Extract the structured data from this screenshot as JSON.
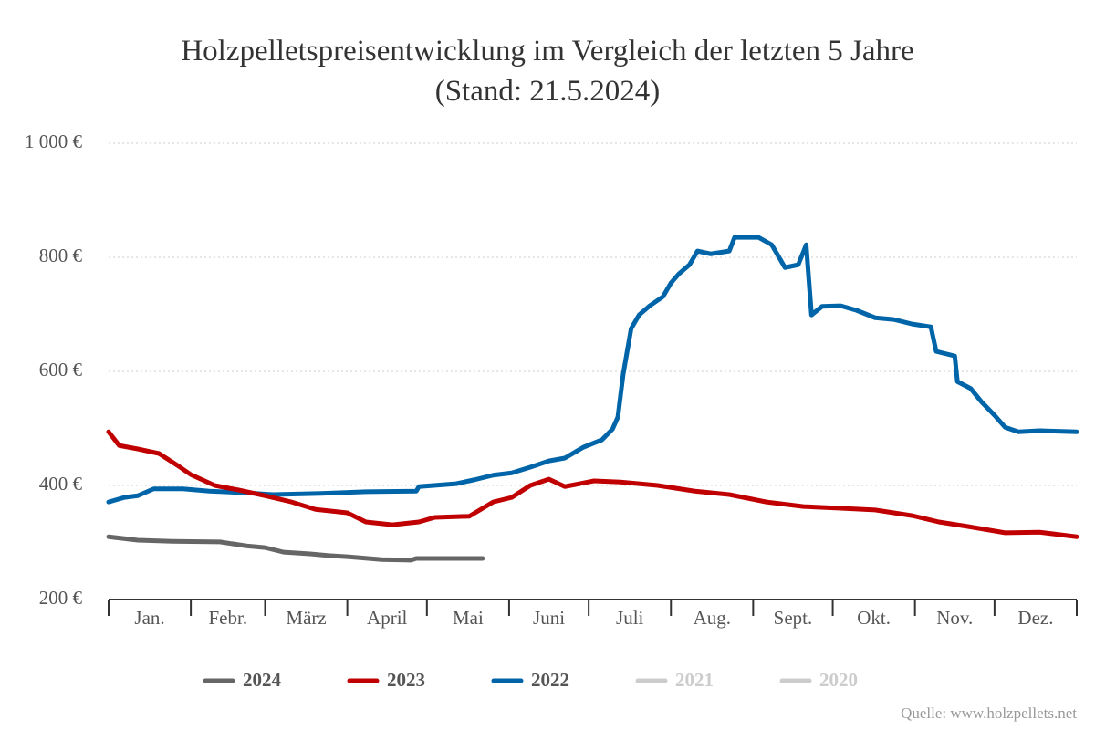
{
  "chart_data": {
    "type": "line",
    "title": "Holzpelletspreisentwicklung im Vergleich der letzten 5 Jahre (Stand: 21.5.2024)",
    "source": "Quelle: www.holzpellets.net",
    "categories": [
      "Jan.",
      "Febr.",
      "März",
      "April",
      "Mai",
      "Juni",
      "Juli",
      "Aug.",
      "Sept.",
      "Okt.",
      "Nov.",
      "Dez."
    ],
    "xlim": [
      1,
      366
    ],
    "xticks": [
      1,
      32,
      60,
      91,
      121,
      152,
      182,
      213,
      244,
      274,
      305,
      335,
      366
    ],
    "ylim": [
      200,
      1000
    ],
    "yticks": [
      {
        "value": 200,
        "label": "200 €"
      },
      {
        "value": 400,
        "label": "400 €"
      },
      {
        "value": 600,
        "label": "600 €"
      },
      {
        "value": 800,
        "label": "800 €"
      },
      {
        "value": 1000,
        "label": "1 000 €"
      }
    ],
    "grid": true,
    "legend": "bottom",
    "series": [
      {
        "name": "2024",
        "color": "#666666",
        "visible": true,
        "x": [
          1,
          12,
          25,
          43,
          53,
          60,
          67,
          77,
          84,
          91,
          104,
          115,
          117,
          132,
          142
        ],
        "values": [
          310,
          304,
          302,
          301,
          294,
          291,
          283,
          280,
          277,
          275,
          270,
          269,
          272,
          272,
          272
        ]
      },
      {
        "name": "2023",
        "color": "#c00000",
        "visible": true,
        "x": [
          1,
          5,
          12,
          20,
          27,
          32,
          41,
          50,
          60,
          70,
          79,
          91,
          98,
          108,
          118,
          124,
          137,
          146,
          153,
          160,
          167,
          173,
          184,
          194,
          208,
          222,
          235,
          249,
          263,
          277,
          290,
          304,
          314,
          325,
          339,
          352,
          366
        ],
        "values": [
          494,
          470,
          464,
          456,
          435,
          419,
          400,
          392,
          382,
          371,
          358,
          352,
          336,
          331,
          336,
          344,
          346,
          371,
          379,
          400,
          411,
          398,
          408,
          406,
          400,
          390,
          384,
          371,
          363,
          360,
          357,
          347,
          336,
          328,
          317,
          318,
          310
        ]
      },
      {
        "name": "2022",
        "color": "#0064a8",
        "visible": true,
        "x": [
          1,
          7,
          12,
          18,
          29,
          39,
          53,
          63,
          81,
          98,
          117,
          118,
          132,
          139,
          146,
          153,
          160,
          167,
          173,
          180,
          187,
          191,
          193,
          195,
          198,
          201,
          205,
          210,
          213,
          216,
          220,
          223,
          228,
          235,
          237,
          246,
          251,
          256,
          261,
          264,
          266,
          270,
          277,
          283,
          290,
          297,
          304,
          311,
          313,
          320,
          321,
          326,
          330,
          335,
          339,
          344,
          352,
          366
        ],
        "values": [
          371,
          379,
          382,
          394,
          394,
          390,
          387,
          384,
          386,
          389,
          390,
          398,
          403,
          410,
          418,
          422,
          432,
          443,
          448,
          467,
          480,
          499,
          520,
          595,
          675,
          699,
          715,
          731,
          755,
          771,
          787,
          811,
          806,
          811,
          835,
          835,
          822,
          782,
          787,
          822,
          699,
          714,
          715,
          707,
          694,
          691,
          683,
          678,
          635,
          627,
          582,
          570,
          547,
          523,
          502,
          494,
          496,
          494
        ]
      },
      {
        "name": "2021",
        "color": "#cccccc",
        "visible": false,
        "x": [],
        "values": []
      },
      {
        "name": "2020",
        "color": "#cccccc",
        "visible": false,
        "x": [],
        "values": []
      }
    ]
  }
}
